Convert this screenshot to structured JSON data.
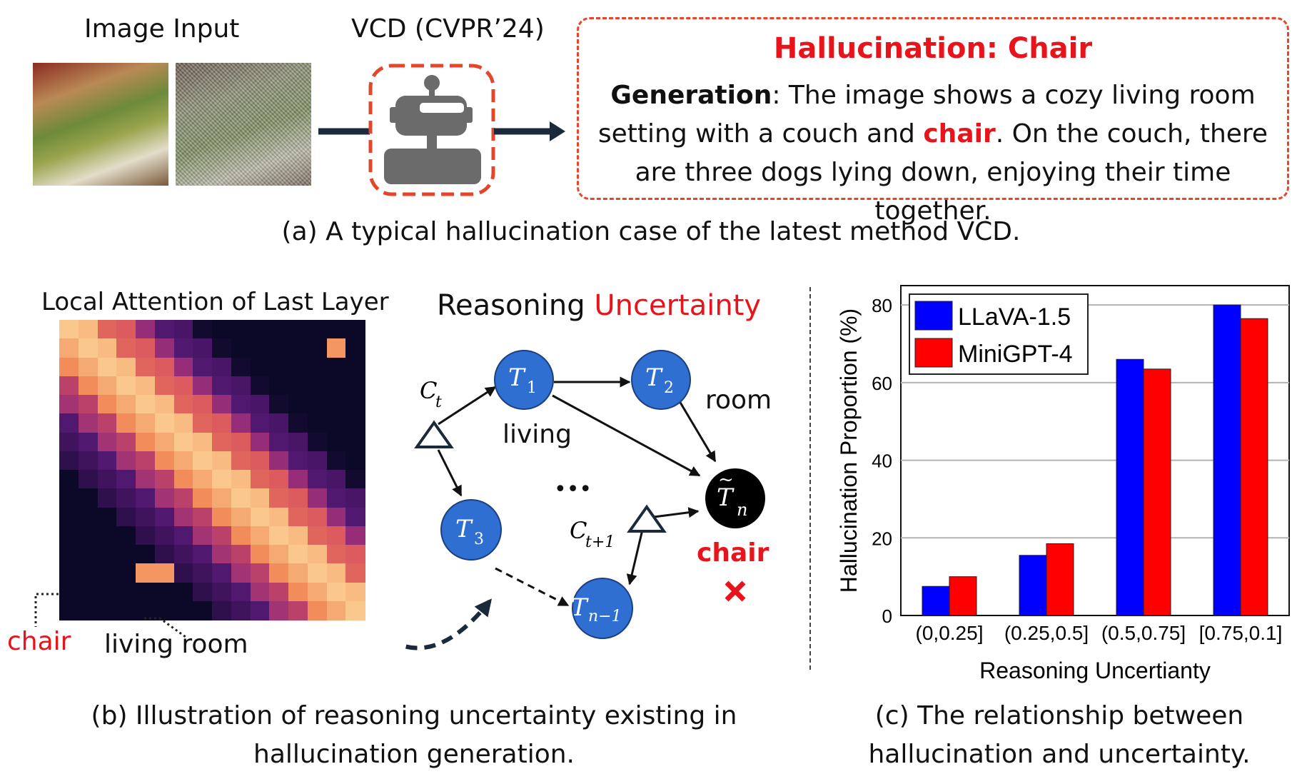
{
  "panel_a": {
    "image_input_label": "Image Input",
    "method_label": "VCD (CVPR’24)",
    "output": {
      "title": "Hallucination: Chair",
      "gen_label": "Generation",
      "gen_part1": ": The image shows a cozy living room setting with a couch and ",
      "gen_highlight": "chair",
      "gen_part2": ". On the couch, there are three dogs lying down, enjoying their time together."
    },
    "caption": "(a) A typical hallucination case of the latest method VCD."
  },
  "panel_b": {
    "heatmap_title": "Local Attention of Last Layer",
    "reasoning_prefix": "Reasoning ",
    "reasoning_highlight": "Uncertainty",
    "chair_axis_label": "chair",
    "living_room_axis_label": "living room",
    "node_labels": {
      "living": "living",
      "room": "room",
      "chair": "chair",
      "dots": "•••"
    },
    "caption_line1": "(b) Illustration of reasoning uncertainty existing in",
    "caption_line2": "hallucination generation."
  },
  "panel_c": {
    "caption_line1": "(c) The relationship between",
    "caption_line2": "hallucination and uncertainty."
  },
  "colors": {
    "accent_red": "#e8141b",
    "dashed_orange": "#e4462b",
    "node_blue": "#2f6fd1",
    "llava_blue": "#0000ff",
    "minigpt_red": "#ff0000"
  },
  "chart_data": {
    "type": "bar",
    "categories": [
      "(0,0.25]",
      "(0.25,0.5]",
      "(0.5,0.75]",
      "[0.75,0.1]"
    ],
    "series": [
      {
        "name": "LLaVA-1.5",
        "values": [
          7.5,
          15.5,
          66,
          80
        ],
        "color": "#0000ff"
      },
      {
        "name": "MiniGPT-4",
        "values": [
          10,
          18.5,
          63.5,
          76.5
        ],
        "color": "#ff0000"
      }
    ],
    "xlabel": "Reasoning Uncertianty",
    "ylabel": "Hallucination Proportion (%)",
    "ylim": [
      0,
      85
    ],
    "yticks": [
      0,
      20,
      40,
      60,
      80
    ],
    "grid": true,
    "legend": "top-left"
  }
}
